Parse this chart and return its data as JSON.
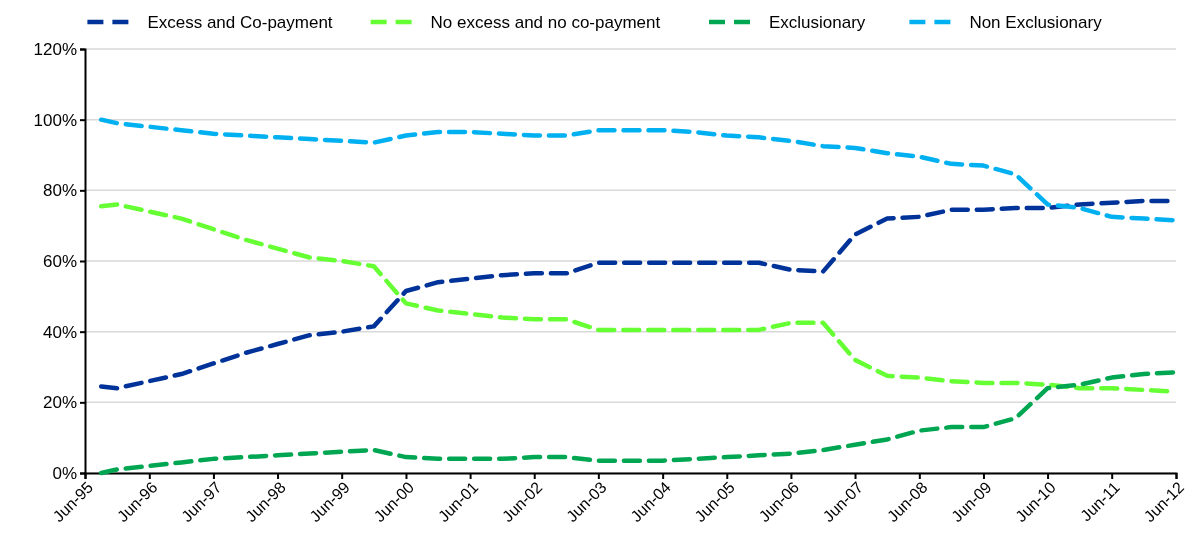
{
  "chart_data": {
    "type": "line",
    "line_style": "dashed",
    "marker": "none",
    "grid": "y",
    "legend": "top",
    "x": [
      "1995-09",
      "1995-12",
      "1996-06",
      "1996-12",
      "1997-06",
      "1997-12",
      "1998-06",
      "1998-12",
      "1999-06",
      "1999-12",
      "2000-06",
      "2000-12",
      "2001-06",
      "2001-12",
      "2002-06",
      "2002-12",
      "2003-06",
      "2003-12",
      "2004-06",
      "2004-12",
      "2005-06",
      "2005-12",
      "2006-06",
      "2006-12",
      "2007-06",
      "2007-12",
      "2008-06",
      "2008-12",
      "2009-06",
      "2009-12",
      "2010-06",
      "2010-12",
      "2011-06",
      "2011-12",
      "2012-06"
    ],
    "series": [
      {
        "name": "Excess and Co-payment",
        "color": "#003399",
        "values": [
          24.5,
          24,
          26,
          28,
          31,
          34,
          36.5,
          39,
          40,
          41.5,
          51.5,
          54,
          55,
          56,
          56.5,
          56.5,
          59.5,
          59.5,
          59.5,
          59.5,
          59.5,
          59.5,
          57.5,
          57,
          67.5,
          72,
          72.5,
          74.5,
          74.5,
          75,
          75,
          76,
          76.5,
          77,
          77
        ]
      },
      {
        "name": "No excess and no co-payment",
        "color": "#66ff33",
        "values": [
          75.5,
          76,
          74,
          72,
          69,
          66,
          63.5,
          61,
          60,
          58.5,
          48,
          46,
          45,
          44,
          43.5,
          43.5,
          40.5,
          40.5,
          40.5,
          40.5,
          40.5,
          40.5,
          42.5,
          42.5,
          32,
          27.5,
          27,
          26,
          25.5,
          25.5,
          25,
          24,
          24,
          23.5,
          23
        ]
      },
      {
        "name": "Exclusionary",
        "color": "#00a651",
        "values": [
          0,
          1,
          2,
          3,
          4,
          4.5,
          5,
          5.5,
          6,
          6.5,
          4.5,
          4,
          4,
          4,
          4.5,
          4.5,
          3.5,
          3.5,
          3.5,
          4,
          4.5,
          5,
          5.5,
          6.5,
          8,
          9.5,
          12,
          13,
          13,
          15.5,
          24,
          25,
          27,
          28,
          28.5
        ]
      },
      {
        "name": "Non Exclusionary",
        "color": "#00b0f0",
        "values": [
          100,
          99,
          98,
          97,
          96,
          95.5,
          95,
          94.5,
          94,
          93.5,
          95.5,
          96.5,
          96.5,
          96,
          95.5,
          95.5,
          97,
          97,
          97,
          96.5,
          95.5,
          95,
          94,
          92.5,
          92,
          90.5,
          89.5,
          87.5,
          87,
          84.5,
          76,
          75,
          72.5,
          72,
          71.5
        ]
      }
    ],
    "xlim": [
      "1995-06",
      "2012-06"
    ],
    "xticks": [
      {
        "value": "1995-06",
        "label": "Jun-95"
      },
      {
        "value": "1996-06",
        "label": "Jun-96"
      },
      {
        "value": "1997-06",
        "label": "Jun-97"
      },
      {
        "value": "1998-06",
        "label": "Jun-98"
      },
      {
        "value": "1999-06",
        "label": "Jun-99"
      },
      {
        "value": "2000-06",
        "label": "Jun-00"
      },
      {
        "value": "2001-06",
        "label": "Jun-01"
      },
      {
        "value": "2002-06",
        "label": "Jun-02"
      },
      {
        "value": "2003-06",
        "label": "Jun-03"
      },
      {
        "value": "2004-06",
        "label": "Jun-04"
      },
      {
        "value": "2005-06",
        "label": "Jun-05"
      },
      {
        "value": "2006-06",
        "label": "Jun-06"
      },
      {
        "value": "2007-06",
        "label": "Jun-07"
      },
      {
        "value": "2008-06",
        "label": "Jun-08"
      },
      {
        "value": "2009-06",
        "label": "Jun-09"
      },
      {
        "value": "2010-06",
        "label": "Jun-10"
      },
      {
        "value": "2011-06",
        "label": "Jun-11"
      },
      {
        "value": "2012-06",
        "label": "Jun-12"
      }
    ],
    "ylim": [
      0,
      120
    ],
    "yticks": [
      {
        "value": 0,
        "label": "0%"
      },
      {
        "value": 20,
        "label": "20%"
      },
      {
        "value": 40,
        "label": "40%"
      },
      {
        "value": 60,
        "label": "60%"
      },
      {
        "value": 80,
        "label": "80%"
      },
      {
        "value": 100,
        "label": "100%"
      },
      {
        "value": 120,
        "label": "120%"
      }
    ]
  }
}
